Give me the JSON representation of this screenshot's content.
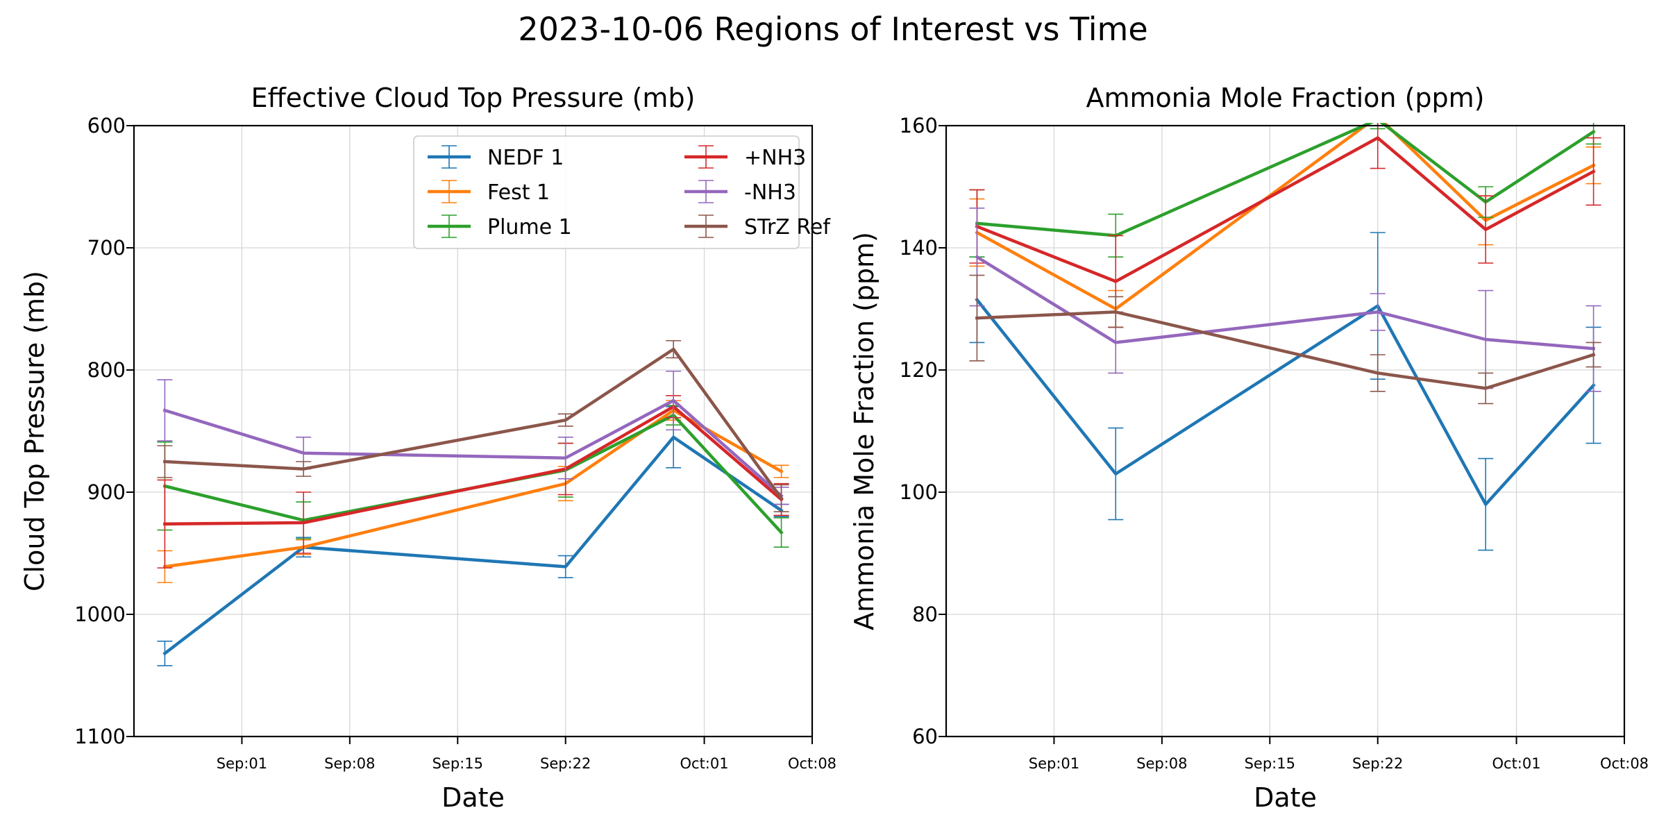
{
  "figure_title": "2023-10-06 Regions of Interest vs Time",
  "colors": {
    "NEDF 1": "#1f77b4",
    "Fest 1": "#ff7f0e",
    "Plume 1": "#2ca02c",
    "+NH3": "#d62728",
    "-NH3": "#9467bd",
    "STrZ Ref": "#8c564b"
  },
  "chart_data": [
    {
      "type": "line",
      "title": "Effective Cloud Top Pressure (mb)",
      "xlabel": "Date",
      "ylabel": "Cloud Top Pressure (mb)",
      "ylim": [
        600,
        1100
      ],
      "y_inverted": true,
      "yticks": [
        600,
        700,
        800,
        900,
        1000,
        1100
      ],
      "xlim": [
        "2023-08-25",
        "2023-10-08"
      ],
      "xticks": [
        "2023-09-01",
        "2023-09-08",
        "2023-09-15",
        "2023-09-22",
        "2023-10-01",
        "2023-10-08"
      ],
      "xtick_labels": [
        "Sep:01",
        "Sep:08",
        "Sep:15",
        "Sep:22",
        "Oct:01",
        "Oct:08"
      ],
      "grid": true,
      "legend": {
        "position": "upper-right",
        "columns": 2
      },
      "series": [
        {
          "name": "NEDF 1",
          "x": [
            "2023-08-27",
            "2023-09-05",
            "2023-09-22",
            "2023-09-29",
            "2023-10-06"
          ],
          "y": [
            1032,
            945,
            961,
            855,
            915
          ],
          "err": [
            10,
            8,
            9,
            25,
            5
          ]
        },
        {
          "name": "Fest 1",
          "x": [
            "2023-08-27",
            "2023-09-05",
            "2023-09-22",
            "2023-09-29",
            "2023-10-06"
          ],
          "y": [
            961,
            945,
            893,
            833,
            883
          ],
          "err": [
            13,
            6,
            14,
            8,
            5
          ]
        },
        {
          "name": "Plume 1",
          "x": [
            "2023-08-27",
            "2023-09-05",
            "2023-09-22",
            "2023-09-29",
            "2023-10-06"
          ],
          "y": [
            895,
            923,
            882,
            837,
            933
          ],
          "err": [
            36,
            15,
            22,
            8,
            12
          ]
        },
        {
          "name": "+NH3",
          "x": [
            "2023-08-27",
            "2023-09-05",
            "2023-09-22",
            "2023-09-29",
            "2023-10-06"
          ],
          "y": [
            926,
            925,
            881,
            830,
            906
          ],
          "err": [
            36,
            25,
            21,
            9,
            13
          ]
        },
        {
          "name": "-NH3",
          "x": [
            "2023-08-27",
            "2023-09-05",
            "2023-09-22",
            "2023-09-29",
            "2023-10-06"
          ],
          "y": [
            833,
            868,
            872,
            825,
            903
          ],
          "err": [
            25,
            13,
            17,
            24,
            7
          ]
        },
        {
          "name": "STrZ Ref",
          "x": [
            "2023-08-27",
            "2023-09-05",
            "2023-09-22",
            "2023-09-29",
            "2023-10-06"
          ],
          "y": [
            875,
            881,
            841,
            783,
            905
          ],
          "err": [
            13,
            6,
            5,
            7,
            11
          ]
        }
      ]
    },
    {
      "type": "line",
      "title": "Ammonia Mole Fraction (ppm)",
      "xlabel": "Date",
      "ylabel": "Ammonia Mole Fraction (ppm)",
      "ylim": [
        60,
        160
      ],
      "y_inverted": false,
      "yticks": [
        60,
        80,
        100,
        120,
        140,
        160
      ],
      "xlim": [
        "2023-08-25",
        "2023-10-08"
      ],
      "xticks": [
        "2023-09-01",
        "2023-09-08",
        "2023-09-15",
        "2023-09-22",
        "2023-10-01",
        "2023-10-08"
      ],
      "xtick_labels": [
        "Sep:01",
        "Sep:08",
        "Sep:15",
        "Sep:22",
        "Oct:01",
        "Oct:08"
      ],
      "grid": true,
      "series": [
        {
          "name": "NEDF 1",
          "x": [
            "2023-08-27",
            "2023-09-05",
            "2023-09-22",
            "2023-09-29",
            "2023-10-06"
          ],
          "y": [
            131.5,
            103,
            130.5,
            98,
            117.5
          ],
          "err": [
            7,
            7.5,
            12,
            7.5,
            9.5
          ]
        },
        {
          "name": "Fest 1",
          "x": [
            "2023-08-27",
            "2023-09-05",
            "2023-09-22",
            "2023-09-29",
            "2023-10-06"
          ],
          "y": [
            142.5,
            130,
            161.5,
            144.5,
            153.5
          ],
          "err": [
            5.5,
            3,
            1.5,
            4,
            3
          ]
        },
        {
          "name": "Plume 1",
          "x": [
            "2023-08-27",
            "2023-09-05",
            "2023-09-22",
            "2023-09-29",
            "2023-10-06"
          ],
          "y": [
            144,
            142,
            161,
            147.5,
            159
          ],
          "err": [
            5.5,
            3.5,
            1.5,
            2.5,
            2
          ]
        },
        {
          "name": "+NH3",
          "x": [
            "2023-08-27",
            "2023-09-05",
            "2023-09-22",
            "2023-09-29",
            "2023-10-06"
          ],
          "y": [
            143.5,
            134.5,
            158,
            143,
            152.5
          ],
          "err": [
            6,
            7.5,
            5,
            5.5,
            5.5
          ]
        },
        {
          "name": "-NH3",
          "x": [
            "2023-08-27",
            "2023-09-05",
            "2023-09-22",
            "2023-09-29",
            "2023-10-06"
          ],
          "y": [
            138.5,
            124.5,
            129.5,
            125,
            123.5
          ],
          "err": [
            8,
            5,
            3,
            8,
            7
          ]
        },
        {
          "name": "STrZ Ref",
          "x": [
            "2023-08-27",
            "2023-09-05",
            "2023-09-22",
            "2023-09-29",
            "2023-10-06"
          ],
          "y": [
            128.5,
            129.5,
            119.5,
            117,
            122.5
          ],
          "err": [
            7,
            2.5,
            3,
            2.5,
            2
          ]
        }
      ]
    }
  ]
}
